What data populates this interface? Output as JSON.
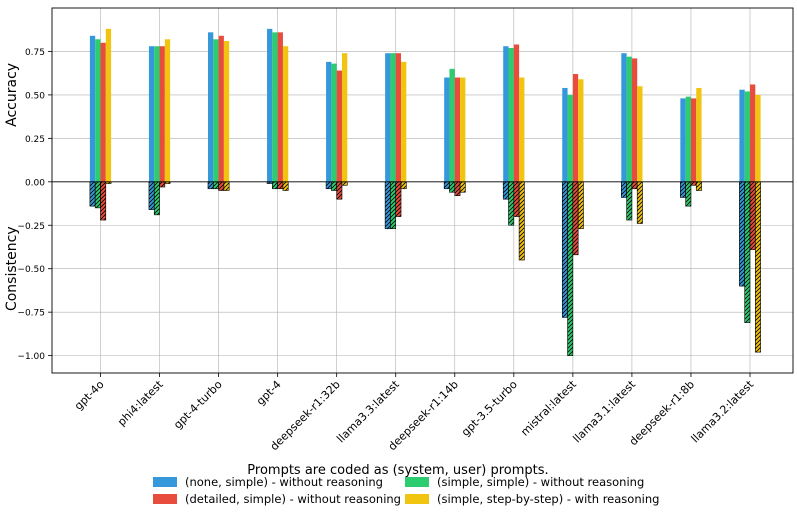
{
  "chart_data": {
    "type": "bar",
    "ylabel_top": "Accuracy",
    "ylabel_bottom": "Consistency",
    "ylim": [
      -1.1,
      1.0
    ],
    "yticks": [
      -1.0,
      -0.75,
      -0.5,
      -0.25,
      0.0,
      0.25,
      0.5,
      0.75
    ],
    "ytick_labels": [
      "−1.00",
      "−0.75",
      "−0.50",
      "−0.25",
      "0.00",
      "0.25",
      "0.50",
      "0.75"
    ],
    "grid": true,
    "categories": [
      "gpt-4o",
      "phi4:latest",
      "gpt-4-turbo",
      "gpt-4",
      "deepseek-r1:32b",
      "llama3.3:latest",
      "deepseek-r1:14b",
      "gpt-3.5-turbo",
      "mistral:latest",
      "llama3.1:latest",
      "deepseek-r1:8b",
      "llama3.2:latest"
    ],
    "series": [
      {
        "name": "(none, simple) - without reasoning",
        "color": "#3498db",
        "accuracy": [
          0.84,
          0.78,
          0.86,
          0.88,
          0.69,
          0.74,
          0.6,
          0.78,
          0.54,
          0.74,
          0.48,
          0.53
        ],
        "consistency": [
          -0.14,
          -0.16,
          -0.04,
          -0.01,
          -0.04,
          -0.27,
          -0.04,
          -0.1,
          -0.78,
          -0.09,
          -0.09,
          -0.6
        ]
      },
      {
        "name": "(simple, simple) - without reasoning",
        "color": "#2ecc71",
        "accuracy": [
          0.82,
          0.78,
          0.82,
          0.86,
          0.68,
          0.74,
          0.65,
          0.77,
          0.5,
          0.72,
          0.49,
          0.52
        ],
        "consistency": [
          -0.15,
          -0.19,
          -0.04,
          -0.04,
          -0.05,
          -0.27,
          -0.06,
          -0.25,
          -1.0,
          -0.22,
          -0.14,
          -0.81
        ]
      },
      {
        "name": "(detailed, simple) - without reasoning",
        "color": "#e74c3c",
        "accuracy": [
          0.8,
          0.78,
          0.84,
          0.86,
          0.64,
          0.74,
          0.6,
          0.79,
          0.62,
          0.71,
          0.48,
          0.56
        ],
        "consistency": [
          -0.22,
          -0.03,
          -0.05,
          -0.04,
          -0.1,
          -0.2,
          -0.08,
          -0.2,
          -0.42,
          -0.04,
          -0.02,
          -0.39
        ]
      },
      {
        "name": "(simple, step-by-step) - with reasoning",
        "color": "#f1c40f",
        "accuracy": [
          0.88,
          0.82,
          0.81,
          0.78,
          0.74,
          0.69,
          0.6,
          0.6,
          0.59,
          0.55,
          0.54,
          0.5
        ],
        "consistency": [
          -0.01,
          -0.01,
          -0.05,
          -0.05,
          -0.02,
          -0.04,
          -0.06,
          -0.45,
          -0.27,
          -0.24,
          -0.05,
          -0.98
        ]
      }
    ],
    "legend_title": "Prompts are coded as (system, user) prompts.",
    "legend_placement": "bottom-center"
  }
}
